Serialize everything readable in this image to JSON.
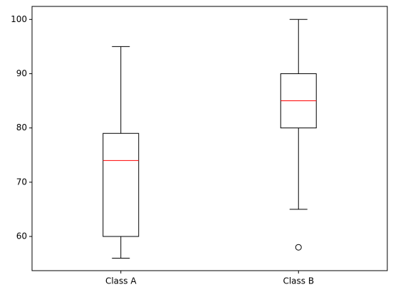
{
  "chart_data": {
    "type": "box",
    "categories": [
      "Class A",
      "Class B"
    ],
    "boxes": [
      {
        "min": 56,
        "q1": 60,
        "median": 74,
        "q3": 79,
        "max": 95,
        "outliers": []
      },
      {
        "min": 65,
        "q1": 80,
        "median": 85,
        "q3": 90,
        "max": 100,
        "outliers": [
          58
        ]
      }
    ],
    "box_color": "#000000",
    "median_color": "#ff0000",
    "ylim": [
      53.7,
      102.4
    ],
    "yticks": [
      60,
      70,
      80,
      90,
      100
    ],
    "grid": false
  }
}
